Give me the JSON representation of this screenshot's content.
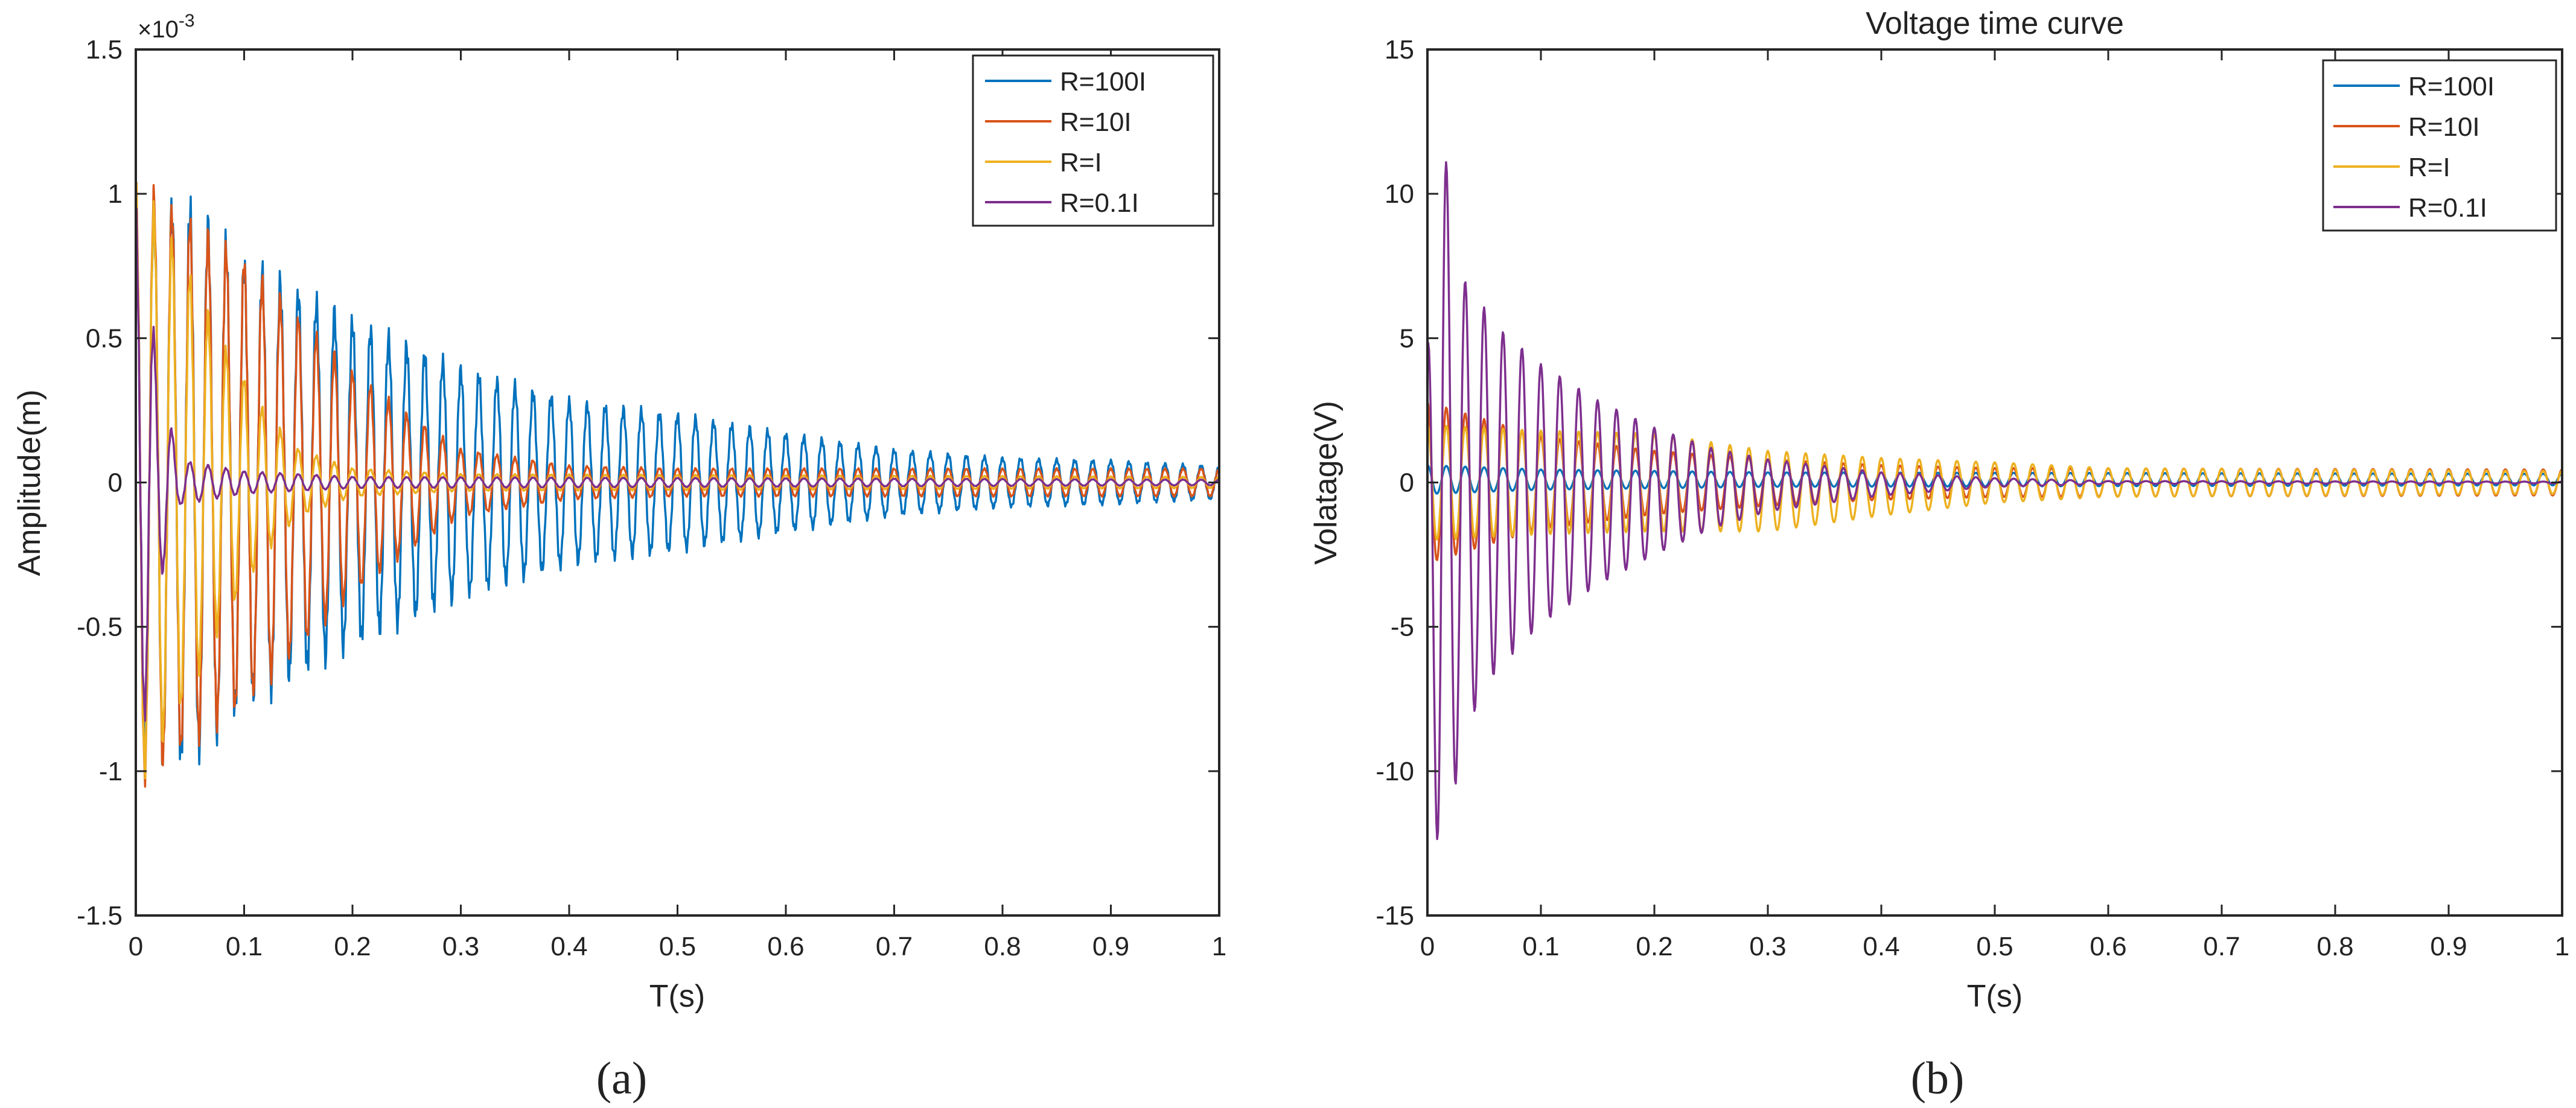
{
  "colors": {
    "s1": "#0072BD",
    "s2": "#D95319",
    "s3": "#EDB120",
    "s4": "#7E2F8E"
  },
  "chart_data": [
    {
      "type": "line",
      "panel": "a",
      "title": "",
      "caption": "(a)",
      "xlabel": "T(s)",
      "ylabel": "Amplitude(m)",
      "y_multiplier": "×10",
      "y_exponent": "-3",
      "xlim": [
        0,
        1
      ],
      "ylim": [
        -1.5,
        1.5
      ],
      "xticks": [
        "0",
        "0.1",
        "0.2",
        "0.3",
        "0.4",
        "0.5",
        "0.6",
        "0.7",
        "0.8",
        "0.9",
        "1"
      ],
      "yticks": [
        "-1.5",
        "-1",
        "-0.5",
        "0",
        "0.5",
        "1",
        "1.5"
      ],
      "legend": [
        "R=100I",
        "R=10I",
        "R=I",
        "R=0.1I"
      ],
      "legend_position": "top-right",
      "series": [
        {
          "name": "R=100I",
          "color_key": "s1",
          "peak": [
            [
              0,
              1.03
            ],
            [
              0.05,
              1.03
            ],
            [
              0.1,
              0.82
            ],
            [
              0.2,
              0.6
            ],
            [
              0.3,
              0.42
            ],
            [
              0.4,
              0.3
            ],
            [
              0.5,
              0.25
            ],
            [
              0.6,
              0.18
            ],
            [
              0.7,
              0.12
            ],
            [
              0.8,
              0.09
            ],
            [
              0.9,
              0.08
            ],
            [
              1,
              0.06
            ]
          ],
          "freq": 60,
          "offset": [
            [
              0,
              0
            ],
            [
              1,
              0
            ]
          ],
          "jitter": 0.08
        },
        {
          "name": "R=10I",
          "color_key": "s2",
          "peak": [
            [
              0,
              1.08
            ],
            [
              0.05,
              0.95
            ],
            [
              0.1,
              0.8
            ],
            [
              0.15,
              0.6
            ],
            [
              0.2,
              0.4
            ],
            [
              0.25,
              0.25
            ],
            [
              0.3,
              0.12
            ],
            [
              0.4,
              0.06
            ],
            [
              0.5,
              0.05
            ],
            [
              1,
              0.05
            ]
          ],
          "freq": 60,
          "offset": [
            [
              0,
              0
            ],
            [
              1,
              0
            ]
          ],
          "jitter": 0.05
        },
        {
          "name": "R=I",
          "color_key": "s3",
          "peak": [
            [
              0,
              1.08
            ],
            [
              0.03,
              0.9
            ],
            [
              0.05,
              0.75
            ],
            [
              0.08,
              0.5
            ],
            [
              0.12,
              0.25
            ],
            [
              0.15,
              0.12
            ],
            [
              0.2,
              0.05
            ],
            [
              0.3,
              0.03
            ],
            [
              1,
              0.02
            ]
          ],
          "freq": 60,
          "offset": [
            [
              0,
              0
            ],
            [
              1,
              0
            ]
          ],
          "jitter": 0.05
        },
        {
          "name": "R=0.1I",
          "color_key": "s4",
          "peak": [
            [
              0,
              1.0
            ],
            [
              0.01,
              0.8
            ],
            [
              0.02,
              0.4
            ],
            [
              0.04,
              0.08
            ],
            [
              0.1,
              0.04
            ],
            [
              0.2,
              0.02
            ],
            [
              1,
              0.01
            ]
          ],
          "freq": 60,
          "offset": [
            [
              0,
              0
            ],
            [
              1,
              0
            ]
          ],
          "jitter": 0.05
        }
      ]
    },
    {
      "type": "line",
      "panel": "b",
      "title": "Voltage time curve",
      "caption": "(b)",
      "xlabel": "T(s)",
      "ylabel": "Volatage(V)",
      "xlim": [
        0,
        1
      ],
      "ylim": [
        -15,
        15
      ],
      "xticks": [
        "0",
        "0.1",
        "0.2",
        "0.3",
        "0.4",
        "0.5",
        "0.6",
        "0.7",
        "0.8",
        "0.9",
        "1"
      ],
      "yticks": [
        "-15",
        "-10",
        "-5",
        "0",
        "5",
        "10",
        "15"
      ],
      "legend": [
        "R=100I",
        "R=10I",
        "R=I",
        "R=0.1I"
      ],
      "legend_position": "top-right",
      "series": [
        {
          "name": "R=100I",
          "color_key": "s1",
          "peak": [
            [
              0,
              0.5
            ],
            [
              0.1,
              0.35
            ],
            [
              0.3,
              0.25
            ],
            [
              1,
              0.2
            ]
          ],
          "freq": 60,
          "offset": [
            [
              0,
              0.1
            ],
            [
              1,
              0.1
            ]
          ],
          "jitter": 0.0
        },
        {
          "name": "R=10I",
          "color_key": "s2",
          "peak": [
            [
              0,
              2.8
            ],
            [
              0.05,
              2.2
            ],
            [
              0.1,
              1.6
            ],
            [
              0.2,
              1.1
            ],
            [
              0.3,
              0.8
            ],
            [
              0.4,
              0.6
            ],
            [
              0.5,
              0.5
            ],
            [
              1,
              0.45
            ]
          ],
          "freq": 60,
          "offset": [
            [
              0,
              0
            ],
            [
              1,
              0
            ]
          ],
          "jitter": 0.0
        },
        {
          "name": "R=I",
          "color_key": "s3",
          "peak": [
            [
              0,
              2.0
            ],
            [
              0.1,
              1.8
            ],
            [
              0.2,
              1.7
            ],
            [
              0.3,
              1.4
            ],
            [
              0.4,
              1.0
            ],
            [
              0.5,
              0.7
            ],
            [
              0.6,
              0.5
            ],
            [
              1,
              0.4
            ]
          ],
          "freq": 60,
          "offset": [
            [
              0,
              0
            ],
            [
              0.2,
              0
            ],
            [
              0.3,
              -0.3
            ],
            [
              0.5,
              0
            ],
            [
              1,
              0
            ]
          ],
          "jitter": 0.0
        },
        {
          "name": "R=0.1I",
          "color_key": "s4",
          "peak": [
            [
              0,
              5.8
            ],
            [
              0.012,
              13.5
            ],
            [
              0.03,
              8.0
            ],
            [
              0.06,
              6.0
            ],
            [
              0.1,
              4.5
            ],
            [
              0.15,
              3.2
            ],
            [
              0.2,
              2.2
            ],
            [
              0.25,
              1.4
            ],
            [
              0.3,
              0.9
            ],
            [
              0.4,
              0.4
            ],
            [
              0.5,
              0.15
            ],
            [
              0.6,
              0.05
            ],
            [
              1,
              0.03
            ]
          ],
          "freq": 60,
          "offset": [
            [
              0,
              -1.2
            ],
            [
              0.05,
              -0.6
            ],
            [
              0.1,
              -0.4
            ],
            [
              0.2,
              -0.3
            ],
            [
              0.3,
              -0.1
            ],
            [
              0.5,
              0
            ],
            [
              1,
              0
            ]
          ],
          "jitter": 0.0
        }
      ]
    }
  ]
}
